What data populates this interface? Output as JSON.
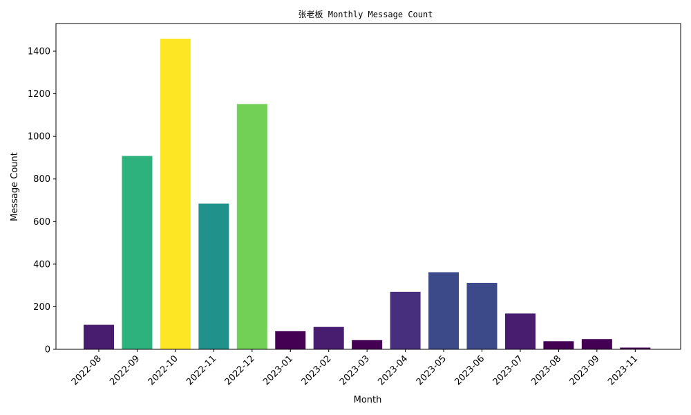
{
  "chart_data": {
    "type": "bar",
    "title": "张老板 Monthly Message Count",
    "xlabel": "Month",
    "ylabel": "Message Count",
    "categories": [
      "2022-08",
      "2022-09",
      "2022-10",
      "2022-11",
      "2022-12",
      "2023-01",
      "2023-02",
      "2023-03",
      "2023-04",
      "2023-05",
      "2023-06",
      "2023-07",
      "2023-08",
      "2023-09",
      "2023-11"
    ],
    "values": [
      115,
      908,
      1459,
      684,
      1152,
      85,
      105,
      43,
      270,
      362,
      312,
      168,
      38,
      48,
      8
    ],
    "colors": [
      "#481c6e",
      "#2db27d",
      "#fde725",
      "#21918c",
      "#73d056",
      "#440154",
      "#481c6e",
      "#440154",
      "#482f7e",
      "#3c4a8a",
      "#3c4a8a",
      "#481c6e",
      "#440154",
      "#440154",
      "#440154"
    ],
    "ylim": [
      0,
      1530
    ],
    "yticks": [
      0,
      200,
      400,
      600,
      800,
      1000,
      1200,
      1400
    ],
    "grid": false,
    "legend": "none"
  }
}
